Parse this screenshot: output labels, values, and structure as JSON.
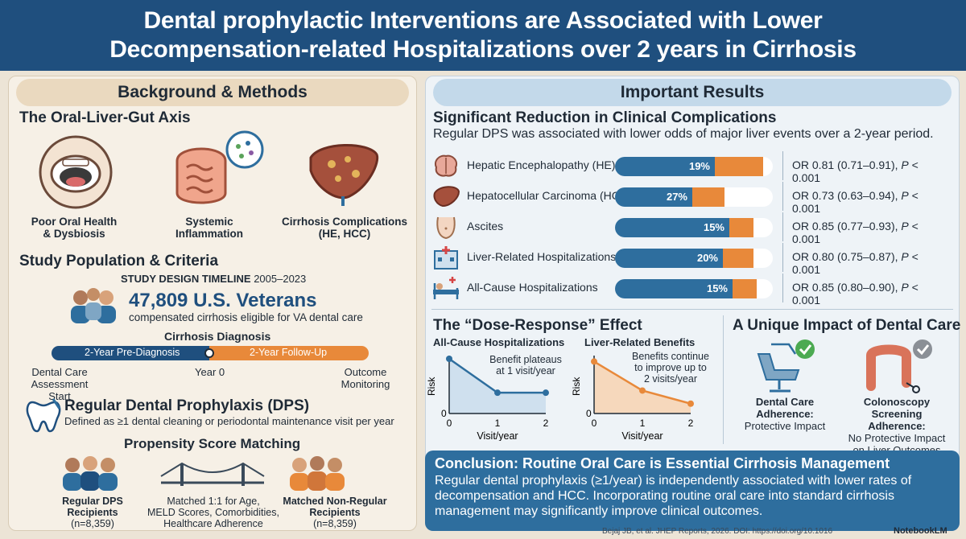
{
  "header": {
    "title_line1": "Dental prophylactic Interventions are Associated with Lower",
    "title_line2": "Decompensation-related Hospitalizations over 2 years in Cirrhosis"
  },
  "left": {
    "panel_title": "Background & Methods",
    "axis_heading": "The Oral-Liver-Gut Axis",
    "axis_items": [
      {
        "line1": "Poor Oral Health",
        "line2": "& Dysbiosis",
        "icon": "mouth-icon"
      },
      {
        "line1": "Systemic",
        "line2": "Inflammation",
        "icon": "intestine-icon"
      },
      {
        "line1": "Cirrhosis Complications",
        "line2": "(HE, HCC)",
        "icon": "liver-icon"
      }
    ],
    "population_heading": "Study Population & Criteria",
    "timeline_label_bold": "STUDY DESIGN TIMELINE",
    "timeline_years": "2005–2023",
    "veterans_count": "47,809 U.S. Veterans",
    "veterans_desc": "compensated cirrhosis eligible for VA dental care",
    "diagnosis_label": "Cirrhosis Diagnosis",
    "pre_label": "2-Year Pre-Diagnosis",
    "follow_label": "2-Year Follow-Up",
    "tl_start_line1": "Dental Care",
    "tl_start_line2": "Assessment Start",
    "tl_mid": "Year 0",
    "tl_end_line1": "Outcome",
    "tl_end_line2": "Monitoring",
    "dps_title": "Regular Dental Prophylaxis (DPS)",
    "dps_desc": "Defined as ≥1 dental cleaning or periodontal maintenance visit per year",
    "psm_heading": "Propensity Score Matching",
    "group_a_line1": "Regular DPS",
    "group_a_line2": "Recipients",
    "group_a_n": "(n=8,359)",
    "match_line1": "Matched 1:1 for Age,",
    "match_line2": "MELD Scores, Comorbidities,",
    "match_line3": "Healthcare Adherence",
    "group_b_line1": "Matched Non-Regular",
    "group_b_line2": "Recipients",
    "group_b_n": "(n=8,359)"
  },
  "right": {
    "panel_title": "Important Results",
    "sig_heading": "Significant Reduction in Clinical Complications",
    "sig_desc": "Regular DPS was associated with lower odds of major liver events over a 2-year period.",
    "outcomes": [
      {
        "label": "Hepatic Encephalopathy (HE)",
        "pct": "19%",
        "reduction": 0.19,
        "or_text": "OR 0.81 (0.71–0.91), ",
        "p_italic": "P",
        "p_rest": " < 0.001",
        "icon": "brain-icon"
      },
      {
        "label": "Hepatocellular Carcinoma (HCC)",
        "pct": "27%",
        "reduction": 0.27,
        "or_text": "OR 0.73 (0.63–0.94), ",
        "p_italic": "P",
        "p_rest": " < 0.001",
        "icon": "liver-icon"
      },
      {
        "label": "Ascites",
        "pct": "15%",
        "reduction": 0.15,
        "or_text": "OR 0.85 (0.77–0.93), ",
        "p_italic": "P",
        "p_rest": " < 0.001",
        "icon": "abdomen-icon"
      },
      {
        "label": "Liver-Related Hospitalizations",
        "pct": "20%",
        "reduction": 0.2,
        "or_text": "OR 0.80 (0.75–0.87), ",
        "p_italic": "P",
        "p_rest": " < 0.001",
        "icon": "hospital-icon"
      },
      {
        "label": "All-Cause Hospitalizations",
        "pct": "15%",
        "reduction": 0.15,
        "or_text": "OR 0.85 (0.80–0.90), ",
        "p_italic": "P",
        "p_rest": " < 0.001",
        "icon": "hospital-bed-icon"
      }
    ],
    "dose_heading": "The “Dose-Response” Effect",
    "unique_heading": "A Unique Impact of Dental Care",
    "chart1": {
      "title": "All-Cause Hospitalizations",
      "ylabel": "Risk",
      "xlabel": "Visit/year",
      "ytick": "0",
      "note_line1": "Benefit plateaus",
      "note_line2": "at 1 visit/year"
    },
    "chart2": {
      "title": "Liver-Related Benefits",
      "ylabel": "Risk",
      "xlabel": "Visit/year",
      "ytick": "0",
      "note_line1": "Benefits continue",
      "note_line2": "to improve up to",
      "note_line3": "2 visits/year"
    },
    "dental_line1": "Dental Care",
    "dental_line2": "Adherence:",
    "dental_line3": "Protective Impact",
    "colon_line1": "Colonoscopy Screening",
    "colon_line2": "Adherence:",
    "colon_line3": "No Protective Impact",
    "colon_line4": "on Liver Outcomes"
  },
  "conclusion": {
    "title": "Conclusion: Routine Oral Care is Essential Cirrhosis Management",
    "line1": "Regular dental prophylaxis (≥1/year) is independently associated with lower rates of",
    "line2": "decompensation and HCC. Incorporating routine oral care into standard cirrhosis",
    "line3": "management may significantly improve clinical outcomes."
  },
  "footer": {
    "citation": "Bejaj JB, et al. JHEP Reports, 2026. DOI: https://doi.org/10.1016",
    "brand": "NotebookLM"
  },
  "chart_data": [
    {
      "type": "area",
      "title": "All-Cause Hospitalizations",
      "xlabel": "Visit/year",
      "ylabel": "Risk",
      "x": [
        0,
        1,
        2
      ],
      "series": [
        {
          "values": [
            1.0,
            0.38,
            0.38
          ]
        }
      ],
      "xlim": [
        0,
        2
      ],
      "ylim": [
        0,
        1
      ]
    },
    {
      "type": "area",
      "title": "Liver-Related Benefits",
      "xlabel": "Visit/year",
      "ylabel": "Risk",
      "x": [
        0,
        1,
        2
      ],
      "series": [
        {
          "values": [
            0.95,
            0.42,
            0.18
          ]
        }
      ],
      "xlim": [
        0,
        2
      ],
      "ylim": [
        0,
        1
      ]
    }
  ],
  "colors": {
    "navy": "#1f4f7e",
    "blue": "#2e6e9e",
    "orange": "#e8893a",
    "beige": "#f6f0e6",
    "green": "#4caa52"
  }
}
